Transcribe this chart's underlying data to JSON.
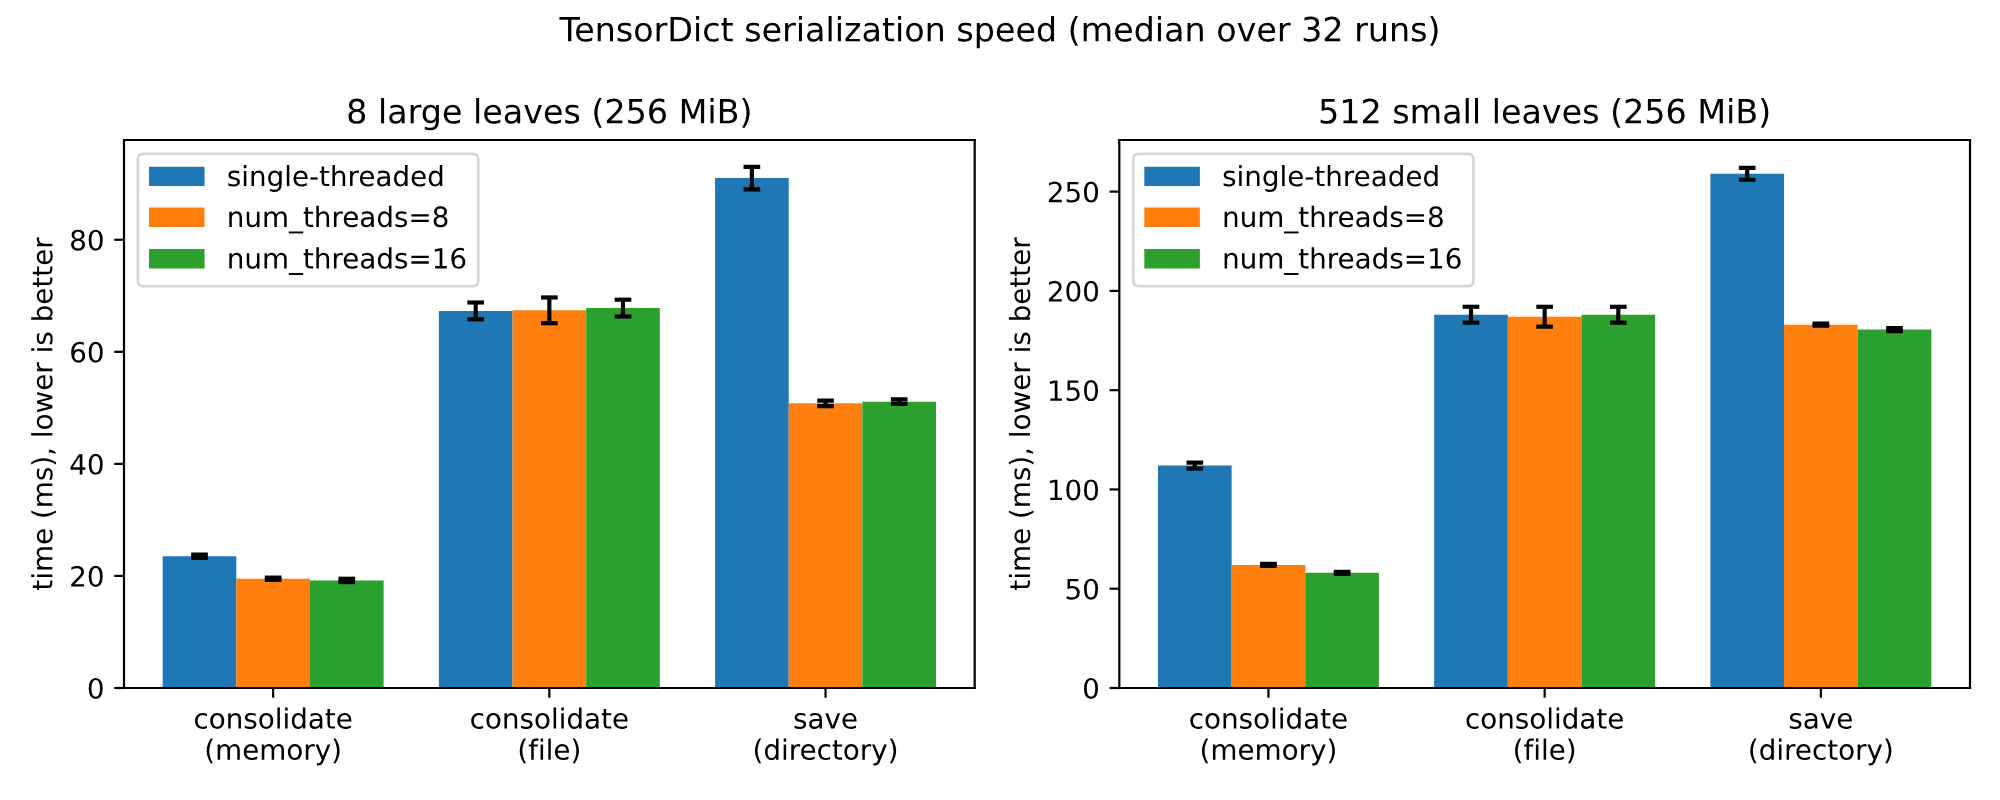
{
  "chart_data": [
    {
      "type": "bar",
      "title": "8 large leaves (256 MiB)",
      "ylabel": "time (ms), lower is better",
      "categories": [
        "consolidate\n(memory)",
        "consolidate\n(file)",
        "save\n(directory)"
      ],
      "series": [
        {
          "name": "single-threaded",
          "color": "#1f77b4",
          "values": [
            23.5,
            67.3,
            91.0
          ],
          "errors": [
            0.3,
            1.5,
            2.0
          ]
        },
        {
          "name": "num_threads=8",
          "color": "#ff7f0e",
          "values": [
            19.5,
            67.4,
            50.8
          ],
          "errors": [
            0.2,
            2.3,
            0.5
          ]
        },
        {
          "name": "num_threads=16",
          "color": "#2ca02c",
          "values": [
            19.2,
            67.8,
            51.1
          ],
          "errors": [
            0.3,
            1.5,
            0.4
          ]
        }
      ],
      "ylim": [
        0,
        97.8
      ],
      "yticks": [
        0,
        20,
        40,
        60,
        80
      ],
      "legend": "top left",
      "annotations": [
        "TensorDict serialization speed (median over 32 runs)"
      ]
    },
    {
      "type": "bar",
      "title": "512 small leaves (256 MiB)",
      "ylabel": "time (ms), lower is better",
      "categories": [
        "consolidate\n(memory)",
        "consolidate\n(file)",
        "save\n(directory)"
      ],
      "series": [
        {
          "name": "single-threaded",
          "color": "#1f77b4",
          "values": [
            112,
            188,
            259
          ],
          "errors": [
            1.5,
            4,
            3
          ]
        },
        {
          "name": "num_threads=8",
          "color": "#ff7f0e",
          "values": [
            62,
            187,
            183
          ],
          "errors": [
            0.5,
            5,
            0.5
          ]
        },
        {
          "name": "num_threads=16",
          "color": "#2ca02c",
          "values": [
            58,
            188,
            180.5
          ],
          "errors": [
            0.5,
            4,
            0.8
          ]
        }
      ],
      "ylim": [
        0,
        276
      ],
      "yticks": [
        0,
        50,
        100,
        150,
        200,
        250
      ],
      "legend": "top left"
    }
  ]
}
